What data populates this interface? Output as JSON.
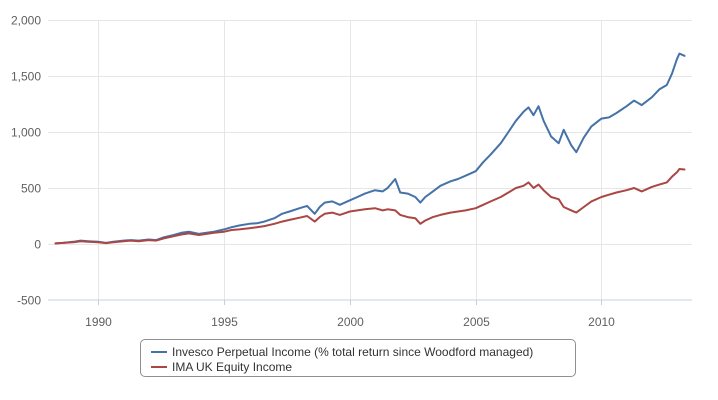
{
  "chart_data": {
    "type": "line",
    "title": "",
    "xlabel": "",
    "ylabel": "",
    "xlim": [
      1988.0,
      2013.6
    ],
    "ylim": [
      -500,
      2000
    ],
    "y_ticks": [
      {
        "value": -500,
        "label": "-500"
      },
      {
        "value": 0,
        "label": "0"
      },
      {
        "value": 500,
        "label": "500"
      },
      {
        "value": 1000,
        "label": "1,000"
      },
      {
        "value": 1500,
        "label": "1,500"
      },
      {
        "value": 2000,
        "label": "2,000"
      }
    ],
    "x_ticks": [
      {
        "value": 1990,
        "label": "1990"
      },
      {
        "value": 1995,
        "label": "1995"
      },
      {
        "value": 2000,
        "label": "2000"
      },
      {
        "value": 2005,
        "label": "2005"
      },
      {
        "value": 2010,
        "label": "2010"
      }
    ],
    "grid": true,
    "legend_position": "bottom",
    "series": [
      {
        "name": "Invesco Perpetual Income (% total return since Woodford managed)",
        "color": "#4572A7",
        "x": [
          1988.3,
          1988.6,
          1989.0,
          1989.3,
          1989.6,
          1990.0,
          1990.3,
          1990.6,
          1991.0,
          1991.3,
          1991.6,
          1992.0,
          1992.3,
          1992.6,
          1993.0,
          1993.3,
          1993.6,
          1994.0,
          1994.3,
          1994.6,
          1995.0,
          1995.3,
          1995.6,
          1996.0,
          1996.3,
          1996.6,
          1997.0,
          1997.3,
          1997.6,
          1998.0,
          1998.3,
          1998.6,
          1998.8,
          1999.0,
          1999.3,
          1999.6,
          2000.0,
          2000.3,
          2000.6,
          2001.0,
          2001.3,
          2001.5,
          2001.8,
          2002.0,
          2002.3,
          2002.6,
          2002.8,
          2003.0,
          2003.3,
          2003.6,
          2004.0,
          2004.3,
          2004.6,
          2005.0,
          2005.3,
          2005.6,
          2006.0,
          2006.3,
          2006.6,
          2006.9,
          2007.1,
          2007.3,
          2007.5,
          2007.7,
          2008.0,
          2008.3,
          2008.5,
          2008.8,
          2009.0,
          2009.3,
          2009.6,
          2010.0,
          2010.3,
          2010.6,
          2011.0,
          2011.3,
          2011.6,
          2012.0,
          2012.3,
          2012.6,
          2012.8,
          2013.0,
          2013.1,
          2013.3
        ],
        "values": [
          5,
          10,
          20,
          30,
          25,
          20,
          10,
          20,
          30,
          35,
          30,
          40,
          35,
          60,
          80,
          100,
          110,
          90,
          100,
          110,
          130,
          150,
          165,
          180,
          185,
          200,
          230,
          270,
          290,
          320,
          340,
          270,
          330,
          370,
          380,
          350,
          390,
          420,
          450,
          480,
          470,
          500,
          580,
          460,
          450,
          420,
          370,
          420,
          470,
          520,
          560,
          580,
          610,
          650,
          730,
          800,
          900,
          1000,
          1100,
          1180,
          1220,
          1150,
          1230,
          1100,
          960,
          900,
          1020,
          880,
          820,
          950,
          1050,
          1120,
          1130,
          1170,
          1230,
          1280,
          1240,
          1310,
          1380,
          1420,
          1520,
          1650,
          1700,
          1680
        ]
      },
      {
        "name": "IMA UK Equity Income",
        "color": "#AA4643",
        "x": [
          1988.3,
          1988.6,
          1989.0,
          1989.3,
          1989.6,
          1990.0,
          1990.3,
          1990.6,
          1991.0,
          1991.3,
          1991.6,
          1992.0,
          1992.3,
          1992.6,
          1993.0,
          1993.3,
          1993.6,
          1994.0,
          1994.3,
          1994.6,
          1995.0,
          1995.3,
          1995.6,
          1996.0,
          1996.3,
          1996.6,
          1997.0,
          1997.3,
          1997.6,
          1998.0,
          1998.3,
          1998.6,
          1998.8,
          1999.0,
          1999.3,
          1999.6,
          2000.0,
          2000.3,
          2000.6,
          2001.0,
          2001.3,
          2001.5,
          2001.8,
          2002.0,
          2002.3,
          2002.6,
          2002.8,
          2003.0,
          2003.3,
          2003.6,
          2004.0,
          2004.3,
          2004.6,
          2005.0,
          2005.3,
          2005.6,
          2006.0,
          2006.3,
          2006.6,
          2006.9,
          2007.1,
          2007.3,
          2007.5,
          2007.7,
          2008.0,
          2008.3,
          2008.5,
          2008.8,
          2009.0,
          2009.3,
          2009.6,
          2010.0,
          2010.3,
          2010.6,
          2011.0,
          2011.3,
          2011.6,
          2012.0,
          2012.3,
          2012.6,
          2012.8,
          2013.0,
          2013.1,
          2013.3
        ],
        "values": [
          5,
          10,
          15,
          25,
          20,
          15,
          8,
          15,
          25,
          30,
          25,
          35,
          30,
          50,
          70,
          85,
          95,
          80,
          90,
          100,
          110,
          125,
          130,
          140,
          150,
          160,
          180,
          200,
          215,
          235,
          250,
          200,
          240,
          270,
          280,
          260,
          290,
          300,
          310,
          320,
          300,
          310,
          300,
          260,
          240,
          230,
          180,
          210,
          240,
          260,
          280,
          290,
          300,
          320,
          350,
          380,
          420,
          460,
          500,
          520,
          550,
          500,
          530,
          480,
          420,
          400,
          330,
          300,
          280,
          330,
          380,
          420,
          440,
          460,
          480,
          500,
          470,
          510,
          530,
          550,
          600,
          640,
          670,
          665
        ]
      }
    ]
  }
}
